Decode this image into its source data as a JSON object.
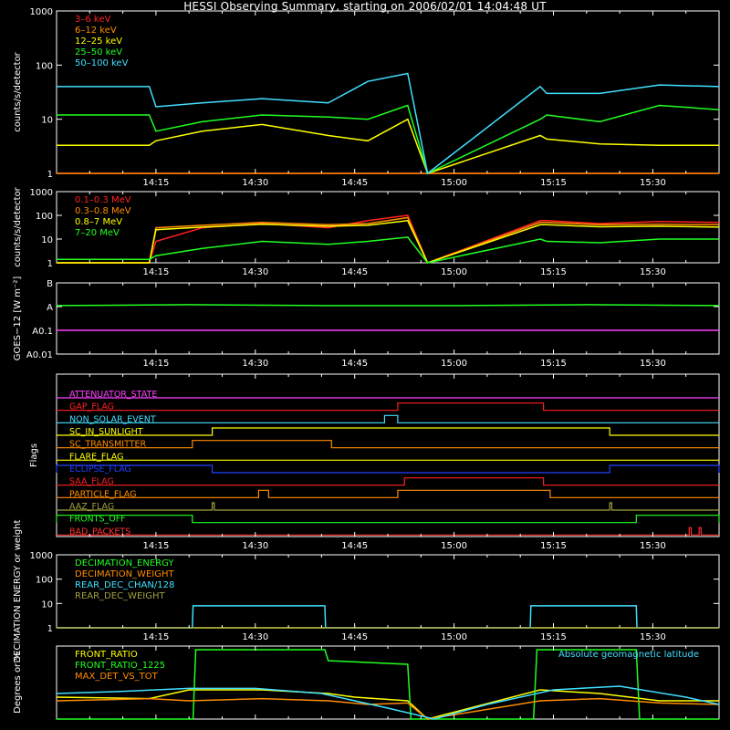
{
  "title": "HESSI Observing Summary, starting on 2006/02/01 14:04:48 UT",
  "colors": {
    "red": "#ff2020",
    "orange": "#ff8c00",
    "yellow": "#ffff00",
    "green": "#20ff20",
    "cyan": "#40e0ff",
    "magenta": "#ff40ff",
    "blue": "#2040ff",
    "olive": "#a0a040",
    "darkred": "#ff3030"
  },
  "time_axis": {
    "ticks": [
      "14:15",
      "14:30",
      "14:45",
      "15:00",
      "15:15",
      "15:30"
    ],
    "tick_minutes": [
      15,
      30,
      45,
      60,
      75,
      90
    ]
  },
  "chart_data": [
    {
      "id": "panel1",
      "type": "line",
      "ylabel": "counts/s/detector",
      "ylog": true,
      "yticks": [
        "1",
        "10",
        "100",
        "1000"
      ],
      "ytick_values": [
        1,
        10,
        100,
        1000
      ],
      "legend_placement": "top-left",
      "series": [
        {
          "name": "3–6 keV",
          "color": "red",
          "x": [
            0,
            14,
            15,
            22,
            31,
            41,
            47,
            53,
            56,
            73,
            74,
            82,
            91,
            100
          ],
          "y": [
            1,
            1,
            1,
            1,
            1,
            1,
            1,
            1,
            1,
            1,
            1,
            1,
            1,
            1
          ]
        },
        {
          "name": "6–12 keV",
          "color": "orange",
          "x": [
            0,
            14,
            15,
            22,
            31,
            41,
            47,
            53,
            56,
            73,
            74,
            82,
            91,
            100
          ],
          "y": [
            1,
            1,
            1,
            1,
            1,
            1,
            1,
            1,
            1,
            1,
            1,
            1,
            1,
            1
          ]
        },
        {
          "name": "12–25 keV",
          "color": "yellow",
          "x": [
            0,
            14,
            15,
            22,
            31,
            41,
            47,
            53,
            56,
            73,
            74,
            82,
            91,
            100
          ],
          "y": [
            3.3,
            3.3,
            4,
            6,
            8,
            5,
            4,
            10,
            1,
            5,
            4.3,
            3.5,
            3.3,
            3.3
          ]
        },
        {
          "name": "25–50 keV",
          "color": "green",
          "x": [
            0,
            14,
            15,
            22,
            31,
            41,
            47,
            53,
            56,
            73,
            74,
            82,
            91,
            100
          ],
          "y": [
            12,
            12,
            6,
            9,
            12,
            11,
            10,
            18,
            1,
            10,
            12,
            9,
            18,
            15
          ]
        },
        {
          "name": "50–100 keV",
          "color": "cyan",
          "x": [
            0,
            14,
            15,
            22,
            31,
            41,
            47,
            53,
            56,
            73,
            74,
            82,
            91,
            100
          ],
          "y": [
            40,
            40,
            17,
            20,
            24,
            20,
            50,
            70,
            1,
            40,
            30,
            30,
            43,
            40
          ]
        }
      ]
    },
    {
      "id": "panel2",
      "type": "line",
      "ylabel": "counts/s/detector",
      "ylog": true,
      "yticks": [
        "1",
        "10",
        "100",
        "1000"
      ],
      "ytick_values": [
        1,
        10,
        100,
        1000
      ],
      "legend_placement": "top-left",
      "series": [
        {
          "name": "0.1–0.3 MeV",
          "color": "red",
          "x": [
            0,
            14,
            15,
            22,
            31,
            41,
            47,
            53,
            56,
            73,
            74,
            82,
            91,
            100
          ],
          "y": [
            1,
            1,
            8,
            30,
            45,
            30,
            60,
            100,
            1,
            60,
            60,
            45,
            55,
            50
          ]
        },
        {
          "name": "0.3–0.8 MeV",
          "color": "orange",
          "x": [
            0,
            14,
            15,
            22,
            31,
            41,
            47,
            53,
            56,
            73,
            74,
            82,
            91,
            100
          ],
          "y": [
            1,
            1,
            30,
            38,
            50,
            40,
            45,
            80,
            1,
            50,
            50,
            40,
            42,
            40
          ]
        },
        {
          "name": "0.8–7 MeV",
          "color": "yellow",
          "x": [
            0,
            14,
            15,
            22,
            31,
            41,
            47,
            53,
            56,
            73,
            74,
            82,
            91,
            100
          ],
          "y": [
            1,
            1,
            25,
            32,
            42,
            35,
            38,
            60,
            1,
            40,
            40,
            33,
            35,
            32
          ]
        },
        {
          "name": "7–20 MeV",
          "color": "green",
          "x": [
            0,
            14,
            15,
            22,
            31,
            41,
            47,
            53,
            56,
            73,
            74,
            82,
            91,
            100
          ],
          "y": [
            1.4,
            1.4,
            2,
            4,
            8,
            6,
            8,
            12,
            1,
            10,
            8,
            7,
            10,
            10
          ]
        }
      ]
    },
    {
      "id": "panel3",
      "type": "line",
      "ylabel": "GOES−12 [W m⁻²]",
      "ylog": true,
      "yticks": [
        "B",
        "A",
        "A0.1",
        "A0.01"
      ],
      "ytick_values": [
        1e-07,
        1e-08,
        1e-09,
        1e-10
      ],
      "series": [
        {
          "name": "",
          "color": "green",
          "x": [
            0,
            20,
            40,
            60,
            80,
            100
          ],
          "y": [
            1.1e-08,
            1.2e-08,
            1.1e-08,
            1.1e-08,
            1.2e-08,
            1.1e-08
          ]
        },
        {
          "name": "",
          "color": "magenta",
          "x": [
            0,
            100
          ],
          "y": [
            1e-09,
            1e-09
          ]
        }
      ]
    },
    {
      "id": "panel4",
      "type": "line",
      "ylabel": "Flags",
      "flags": [
        {
          "name": "ATTENUATOR_STATE",
          "color": "magenta",
          "high": []
        },
        {
          "name": "GAP_FLAG",
          "color": "red",
          "high": [
            [
              51.5,
              73.5
            ]
          ]
        },
        {
          "name": "NON_SOLAR_EVENT",
          "color": "cyan",
          "high": [
            [
              49.5,
              51.5
            ]
          ]
        },
        {
          "name": "SC_IN_SUNLIGHT",
          "color": "yellow",
          "high": [
            [
              23.5,
              83.5
            ]
          ]
        },
        {
          "name": "SC_TRANSMITTER",
          "color": "orange",
          "high": [
            [
              20.5,
              41.5
            ]
          ]
        },
        {
          "name": "FLARE_FLAG",
          "color": "yellow",
          "high": []
        },
        {
          "name": "ECLIPSE_FLAG",
          "color": "blue",
          "high": [
            [
              0,
              23.5
            ],
            [
              83.5,
              100
            ]
          ]
        },
        {
          "name": "SAA_FLAG",
          "color": "red",
          "high": [
            [
              52.5,
              73.5
            ]
          ]
        },
        {
          "name": "PARTICLE_FLAG",
          "color": "orange",
          "high": [
            [
              30.5,
              32
            ],
            [
              51.5,
              74.5
            ]
          ]
        },
        {
          "name": "AAZ_FLAG",
          "color": "olive",
          "high": [
            [
              23.5,
              23.8
            ],
            [
              83.5,
              83.8
            ]
          ]
        },
        {
          "name": "FRONTS_OFF",
          "color": "green",
          "high": [
            [
              0,
              20.5
            ],
            [
              87.5,
              100
            ]
          ]
        },
        {
          "name": "BAD_PACKETS",
          "color": "darkred",
          "high": [
            [
              95.5,
              95.8
            ],
            [
              97,
              97.3
            ]
          ]
        }
      ]
    },
    {
      "id": "panel5",
      "type": "line",
      "ylabel": "DECIMATION ENERGY or weight",
      "ylog": true,
      "yticks": [
        "1",
        "10",
        "100",
        "1000"
      ],
      "ytick_values": [
        1,
        10,
        100,
        1000
      ],
      "legend_placement": "top-left",
      "series": [
        {
          "name": "DECIMATION_ENERGY",
          "color": "green",
          "x": [
            0,
            100
          ],
          "y": [
            1,
            1
          ]
        },
        {
          "name": "DECIMATION_WEIGHT",
          "color": "orange",
          "x": [
            0,
            100
          ],
          "y": [
            1,
            1
          ]
        },
        {
          "name": "REAR_DEC_CHAN/128",
          "color": "cyan",
          "x": [
            0,
            20.5,
            20.6,
            40.5,
            40.6,
            71.5,
            71.6,
            87.5,
            87.6,
            100
          ],
          "y": [
            1,
            1,
            8,
            8,
            1,
            1,
            8,
            8,
            1,
            1
          ]
        },
        {
          "name": "REAR_DEC_WEIGHT",
          "color": "olive",
          "x": [
            0,
            100
          ],
          "y": [
            1,
            1
          ]
        }
      ]
    },
    {
      "id": "panel6",
      "type": "line",
      "ylabel": "Degrees or %",
      "legend_placement": "top-left",
      "right_label": "Absolute geomagnetic latitude",
      "series": [
        {
          "name": "FRONT_RATIO",
          "color": "yellow",
          "x": [
            0,
            14,
            20,
            31,
            41,
            45,
            53,
            56,
            73,
            82,
            91,
            100
          ],
          "y": [
            30,
            28,
            40,
            40,
            35,
            30,
            25,
            0,
            40,
            35,
            25,
            25
          ]
        },
        {
          "name": "FRONT_RATIO_1225",
          "color": "green",
          "x": [
            0,
            20.6,
            21,
            40.5,
            41,
            53,
            53.5,
            72,
            72.5,
            87.5,
            88,
            100
          ],
          "y": [
            0,
            0,
            95,
            95,
            80,
            75,
            0,
            0,
            95,
            95,
            0,
            0
          ]
        },
        {
          "name": "MAX_DET_VS_TOT",
          "color": "orange",
          "x": [
            0,
            14,
            20,
            31,
            41,
            47,
            53,
            56,
            73,
            82,
            91,
            100
          ],
          "y": [
            25,
            28,
            25,
            28,
            25,
            20,
            22,
            0,
            25,
            28,
            22,
            20
          ]
        },
        {
          "name": "Absolute geomagnetic latitude",
          "color": "cyan",
          "x": [
            0,
            10,
            20,
            30,
            40,
            50,
            57,
            65,
            75,
            85,
            95,
            100
          ],
          "y": [
            35,
            38,
            42,
            42,
            35,
            15,
            0,
            20,
            40,
            45,
            30,
            20
          ]
        }
      ]
    }
  ]
}
